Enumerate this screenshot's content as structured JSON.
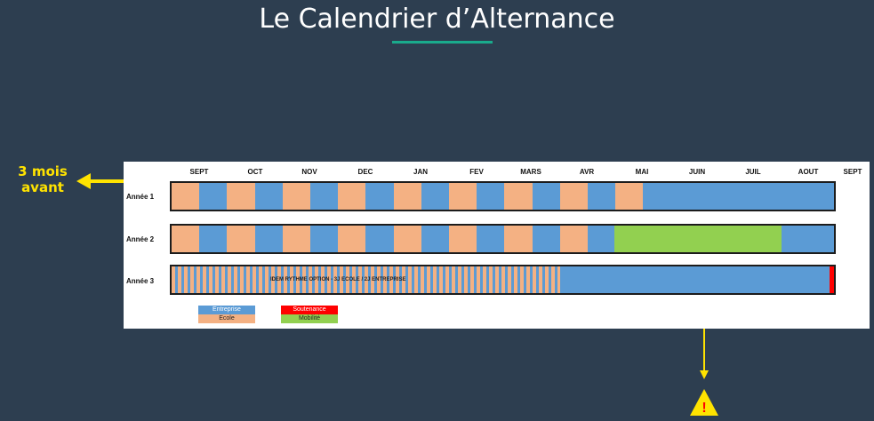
{
  "title": "Le Calendrier d’Alternance",
  "note": {
    "line1": "3 mois",
    "line2": "avant"
  },
  "months": [
    "SEPT",
    "OCT",
    "NOV",
    "DEC",
    "JAN",
    "FEV",
    "MARS",
    "AVR",
    "MAI",
    "JUIN",
    "JUIL",
    "AOUT",
    "SEPT"
  ],
  "years": [
    "Année 1",
    "Année 2",
    "Année 3"
  ],
  "year3_text": "IDEM RYTHME OPTION - 3J ECOLE / 2J ENTREPRISE",
  "legend": {
    "entreprise": "Entreprise",
    "ecole": "Ecole",
    "soutenance": "Soutenance",
    "mobilite": "Mobilité"
  },
  "warning_symbol": "!",
  "colors": {
    "entreprise": "#5b9bd5",
    "ecole": "#f4b183",
    "soutenance": "#ff0000",
    "mobilite": "#92d050",
    "accent": "#ffe300",
    "title_underline": "#1aaa8c"
  },
  "icons": [
    "double-arrow-icon",
    "vertical-arrow-icon",
    "warning-triangle-icon"
  ]
}
